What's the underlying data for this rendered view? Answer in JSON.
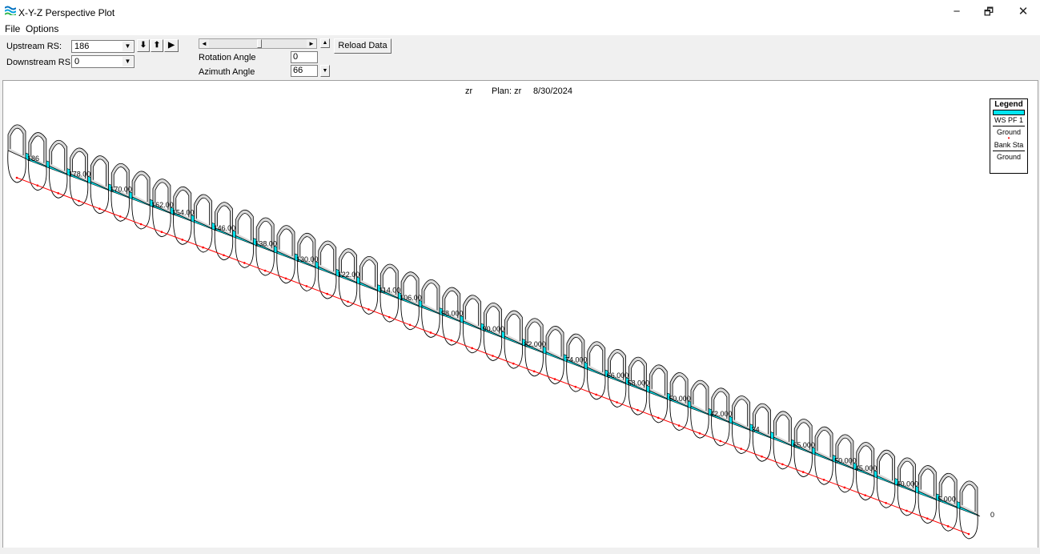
{
  "window": {
    "title": "X-Y-Z Perspective Plot",
    "minimize_glyph": "−",
    "maximize_glyph": "🗗",
    "close_glyph": "✕"
  },
  "menu": {
    "items": [
      "File",
      "Options"
    ]
  },
  "toolbar": {
    "upstream_label": "Upstream RS:",
    "upstream_value": "186",
    "downstream_label": "Downstream RS:",
    "downstream_value": "0",
    "rotation_label": "Rotation Angle",
    "rotation_value": "0",
    "azimuth_label": "Azimuth Angle",
    "azimuth_value": "66",
    "reload_label": "Reload Data",
    "down_arrow_glyph": "⬇",
    "up_arrow_glyph": "⬆",
    "play_glyph": "▶"
  },
  "plot": {
    "header_left": "zr",
    "header_plan": "Plan: zr",
    "header_date": "8/30/2024",
    "water_color": "#00e5f0",
    "ground_color": "#000000",
    "bank_color": "#ff0000"
  },
  "legend": {
    "title": "Legend",
    "items": [
      "WS PF 1",
      "Ground",
      "Bank Sta",
      "Ground"
    ]
  },
  "station_labels": [
    "186",
    "178.00",
    "170.00",
    "162.00",
    "154.00",
    "146.00",
    "138.00",
    "130.00",
    "122.00",
    "114.00",
    "106.00",
    "98.000",
    "90.000",
    "82.000",
    "74.000",
    "66.000",
    "58.000",
    "50.000",
    "42.000",
    "34",
    "65.000",
    "50.000",
    "45.000",
    "40.000",
    "5.000",
    "0"
  ]
}
